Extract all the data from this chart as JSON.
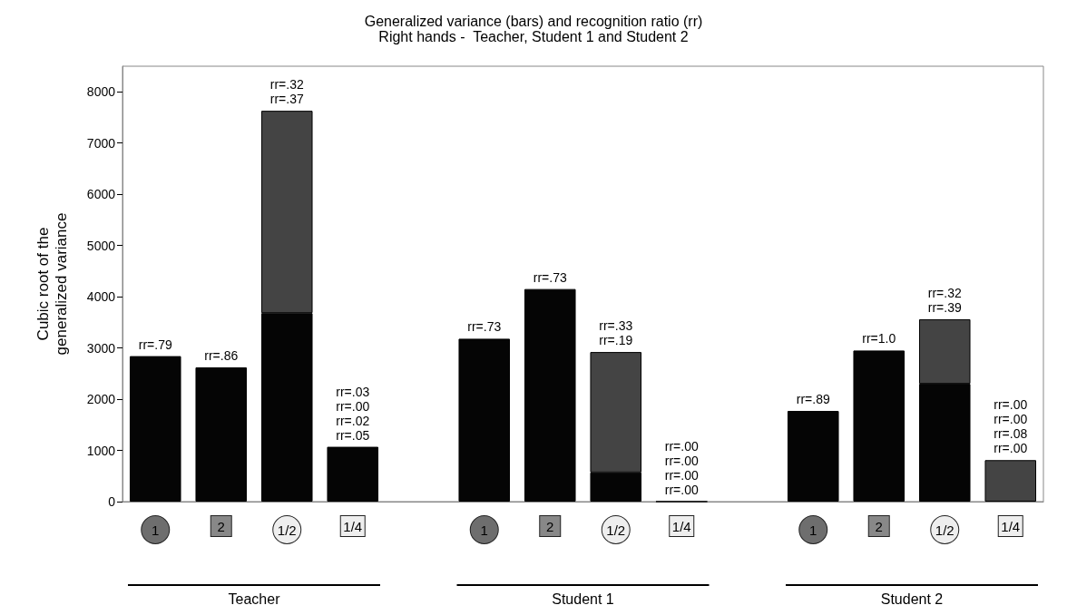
{
  "chart_data": {
    "type": "bar",
    "title": "Generalized variance (bars) and recognition ratio (rr)",
    "subtitle": "Right hands -  Teacher, Student 1 and Student 2",
    "ylabel": "Cubic root of the generalized variance",
    "categories": [
      "1",
      "2",
      "1/2",
      "1/4",
      null,
      "1",
      "2",
      "1/2",
      "1/4",
      null,
      "1",
      "2",
      "1/2",
      "1/4"
    ],
    "stacked": true,
    "series": [
      {
        "color": "#050505",
        "values": [
          2840,
          2620,
          3680,
          1070,
          null,
          3180,
          4150,
          570,
          0,
          null,
          1770,
          2950,
          2300,
          null
        ]
      },
      {
        "color": "#444444",
        "values": [
          null,
          null,
          3950,
          null,
          null,
          null,
          null,
          2350,
          null,
          null,
          null,
          null,
          1260,
          810
        ]
      }
    ],
    "annotations": [
      "Teacher",
      "Student 1",
      "Student 2",
      "rr=.79",
      "rr=.86",
      "rr=.32\nrr=.37",
      "rr=.03\nrr=.00\nrr=.02\nrr=.05",
      "rr=.73",
      "rr=.73",
      "rr=.33\nrr=.19",
      "rr=.00\nrr=.00\nrr=.00\nrr=.00",
      "rr=.89",
      "rr=1.0",
      "rr=.32\nrr=.39",
      "rr=.00\nrr=.00\nrr=.08\nrr=.00"
    ],
    "ylim": [
      0,
      8500
    ],
    "yticks": [
      0,
      1000,
      2000,
      3000,
      4000,
      5000,
      6000,
      7000,
      8000
    ],
    "grid": false
  }
}
